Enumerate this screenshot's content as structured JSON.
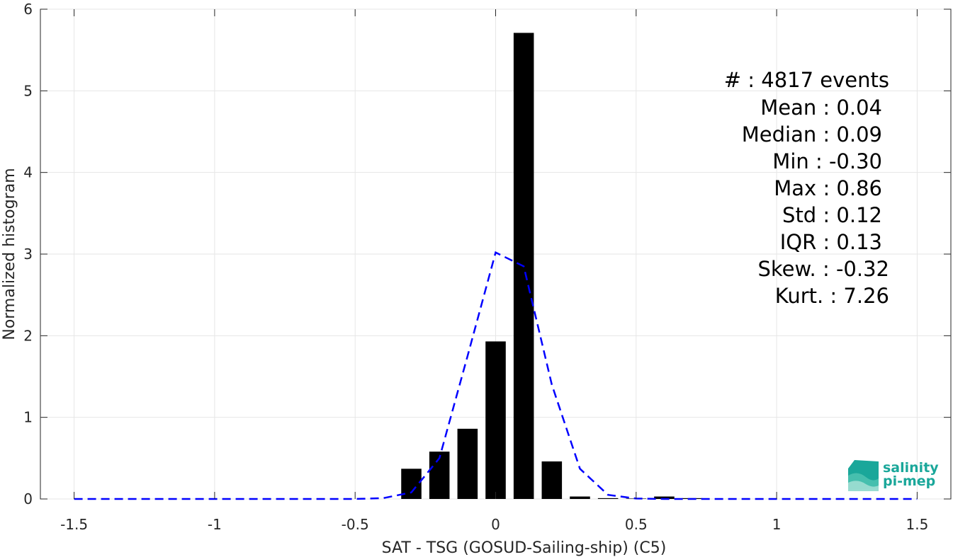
{
  "chart_data": {
    "type": "bar",
    "xlabel": "SAT - TSG (GOSUD-Sailing-ship) (C5)",
    "ylabel": "Normalized histogram",
    "xlim": [
      -1.62,
      1.62
    ],
    "ylim": [
      0,
      6
    ],
    "x_ticks": [
      -1.5,
      -1,
      -0.5,
      0,
      0.5,
      1,
      1.5
    ],
    "x_tick_labels": [
      "-1.5",
      "-1",
      "-0.5",
      "0",
      "0.5",
      "1",
      "1.5"
    ],
    "y_ticks": [
      0,
      1,
      2,
      3,
      4,
      5,
      6
    ],
    "y_tick_labels": [
      "0",
      "1",
      "2",
      "3",
      "4",
      "5",
      "6"
    ],
    "grid": true,
    "bar_color": "#000000",
    "bins": {
      "x": [
        -0.3,
        -0.2,
        -0.1,
        0.0,
        0.1,
        0.2,
        0.3,
        0.4,
        0.5,
        0.6,
        0.7
      ],
      "values": [
        0.37,
        0.58,
        0.86,
        1.93,
        5.71,
        0.46,
        0.03,
        0.01,
        0.005,
        0.03,
        0.01
      ]
    },
    "fit_curve": {
      "color": "#0000ff",
      "style": "dashed",
      "x": [
        -1.5,
        -1.4,
        -1.3,
        -1.2,
        -1.1,
        -1.0,
        -0.9,
        -0.8,
        -0.7,
        -0.6,
        -0.5,
        -0.4,
        -0.3,
        -0.2,
        -0.1,
        0.0,
        0.1,
        0.2,
        0.3,
        0.4,
        0.5,
        0.6,
        0.7,
        0.8,
        0.9,
        1.0,
        1.1,
        1.2,
        1.3,
        1.4,
        1.5
      ],
      "y": [
        0,
        0,
        0,
        0,
        0,
        0,
        0,
        0,
        0,
        0,
        0,
        0.01,
        0.08,
        0.5,
        1.75,
        3.02,
        2.85,
        1.4,
        0.37,
        0.05,
        0.005,
        0,
        0,
        0,
        0,
        0,
        0,
        0,
        0,
        0,
        0
      ]
    },
    "annotations": [
      "#  : 4817 events",
      "Mean : 0.04",
      "Median : 0.09",
      "Min : -0.30",
      "Max : 0.86",
      "Std : 0.12",
      "IQR : 0.13",
      "Skew. : -0.32",
      "Kurt. : 7.26"
    ]
  },
  "logo": {
    "line1": "salinity",
    "line2": "pi-mep",
    "color": "#1aa79a"
  }
}
